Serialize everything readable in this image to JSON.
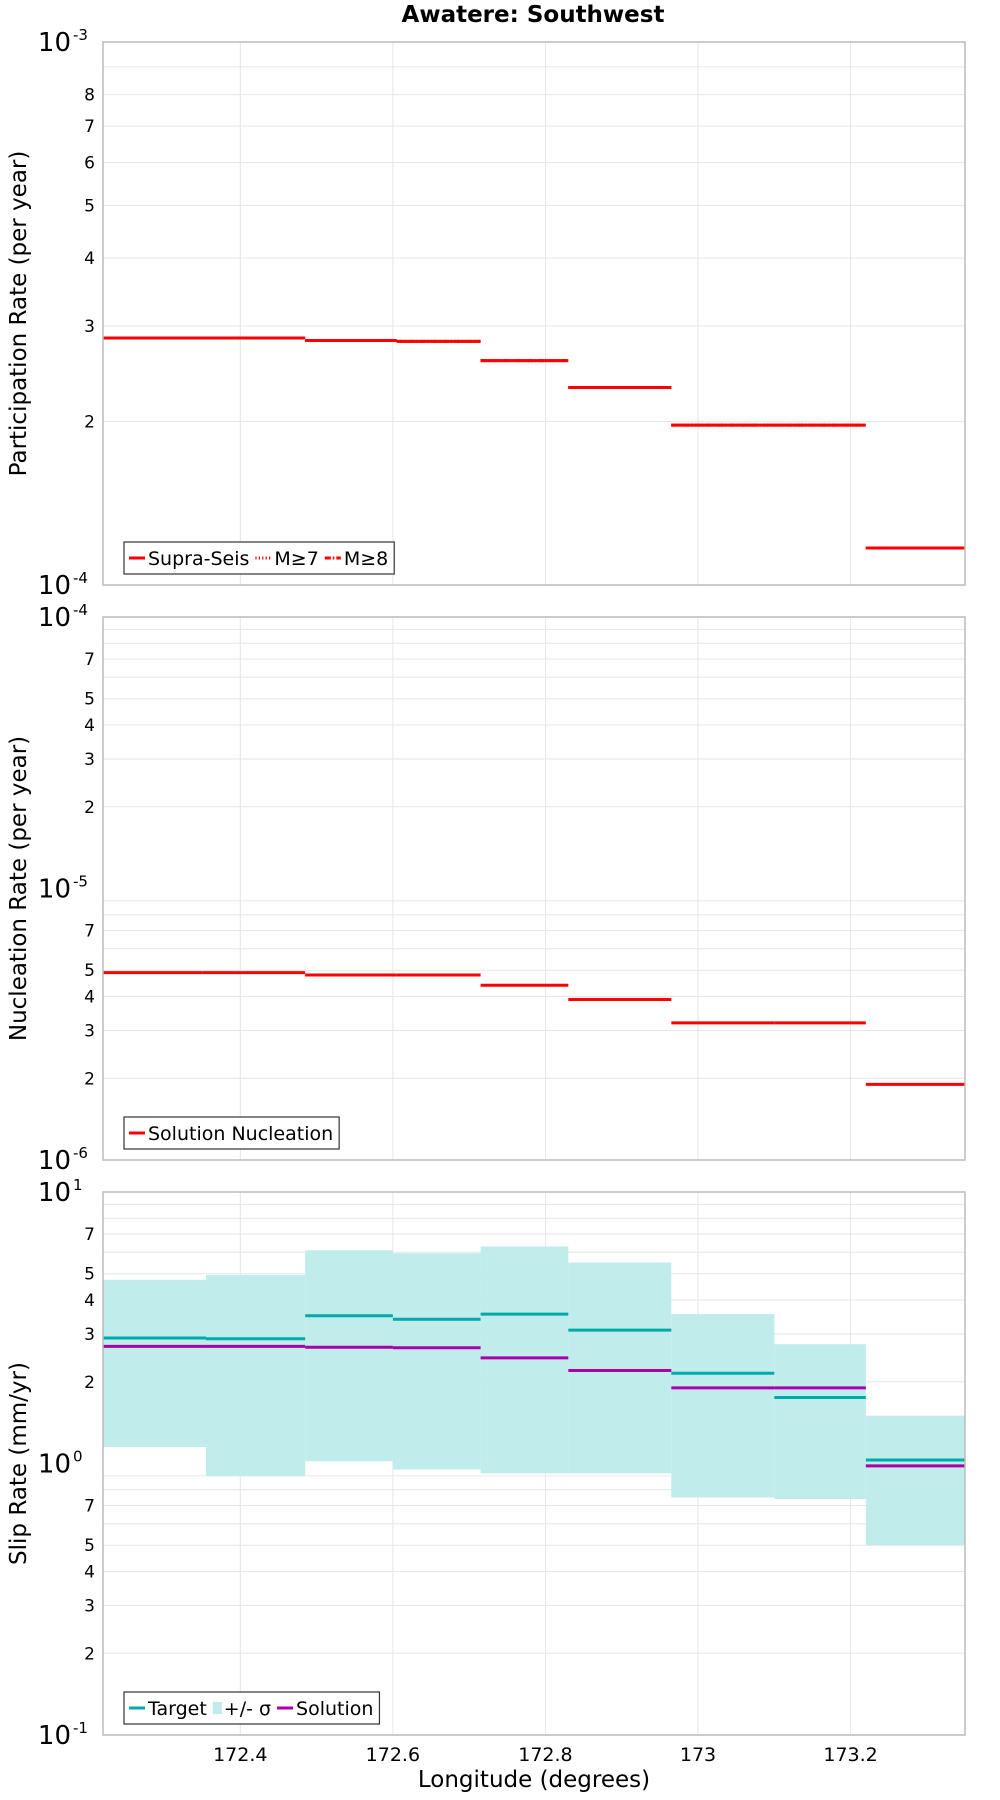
{
  "title": "Awatere: Southwest",
  "xlabel": "Longitude (degrees)",
  "colors": {
    "red": "#ff0000",
    "target": "#00aaaa",
    "band": "#c0ecec",
    "solution": "#aa00aa",
    "grid": "#e6e6e6",
    "frame": "#bbbbbb"
  },
  "chart_data": [
    {
      "type": "line",
      "ylabel": "Participation Rate (per year)",
      "yscale": "log",
      "xlim": [
        172.22,
        173.35
      ],
      "ylim": [
        0.0001,
        0.001
      ],
      "x_ticks": [
        "172.4",
        "172.6",
        "172.8",
        "173",
        "173.2"
      ],
      "y_tick_labels": {
        "major": [
          {
            "v": 0.001,
            "b": "10",
            "e": "-3"
          },
          {
            "v": 0.0001,
            "b": "10",
            "e": "-4"
          }
        ],
        "minor": [
          "8",
          "7",
          "6",
          "5",
          "4",
          "3",
          "2"
        ]
      },
      "legend": {
        "position": "bottom-left",
        "entries": [
          "Supra-Seis",
          "M≥7",
          "M≥8"
        ]
      },
      "x_edges": [
        172.22,
        172.35,
        172.485,
        172.605,
        172.715,
        172.83,
        172.965,
        173.1,
        173.22,
        173.35
      ],
      "series": [
        {
          "name": "Supra-Seis",
          "style": "solid",
          "values": [
            0.000285,
            0.000285,
            0.000282,
            0.000281,
            0.000259,
            0.000231,
            0.000197,
            0.000197,
            0.000117
          ]
        },
        {
          "name": "M≥7",
          "style": "dotted",
          "values": [
            0.000285,
            0.000285,
            0.000282,
            0.000281,
            0.000259,
            0.000231,
            0.000197,
            0.000197,
            0.000117
          ]
        },
        {
          "name": "M≥8",
          "style": "dashdot",
          "values": [
            0.000285,
            0.000285,
            0.000282,
            0.000281,
            0.000259,
            0.000231,
            0.000197,
            0.000197,
            0.000117
          ]
        }
      ]
    },
    {
      "type": "line",
      "ylabel": "Nucleation Rate (per year)",
      "yscale": "log",
      "xlim": [
        172.22,
        173.35
      ],
      "ylim": [
        1e-06,
        0.0001
      ],
      "x_ticks": [
        "172.4",
        "172.6",
        "172.8",
        "173",
        "173.2"
      ],
      "y_tick_labels": {
        "major": [
          {
            "v": 0.0001,
            "b": "10",
            "e": "-4"
          },
          {
            "v": 1e-05,
            "b": "10",
            "e": "-5"
          },
          {
            "v": 1e-06,
            "b": "10",
            "e": "-6"
          }
        ],
        "minor_upper": [
          "7",
          "5",
          "4",
          "3",
          "2"
        ],
        "minor_lower": [
          "7",
          "5",
          "4",
          "3",
          "2"
        ]
      },
      "legend": {
        "position": "bottom-left",
        "entries": [
          "Solution Nucleation"
        ]
      },
      "x_edges": [
        172.22,
        172.35,
        172.485,
        172.605,
        172.715,
        172.83,
        172.965,
        173.1,
        173.22,
        173.35
      ],
      "series": [
        {
          "name": "Solution Nucleation",
          "style": "solid",
          "values": [
            4.9e-06,
            4.9e-06,
            4.8e-06,
            4.8e-06,
            4.4e-06,
            3.9e-06,
            3.2e-06,
            3.2e-06,
            1.9e-06
          ]
        }
      ]
    },
    {
      "type": "line",
      "ylabel": "Slip Rate (mm/yr)",
      "yscale": "log",
      "xlim": [
        172.22,
        173.35
      ],
      "ylim": [
        0.1,
        10
      ],
      "x_ticks": [
        "172.4",
        "172.6",
        "172.8",
        "173",
        "173.2"
      ],
      "y_tick_labels": {
        "major": [
          {
            "v": 10,
            "b": "10",
            "e": "1"
          },
          {
            "v": 1,
            "b": "10",
            "e": "0"
          },
          {
            "v": 0.1,
            "b": "10",
            "e": "-1"
          }
        ],
        "minor_upper": [
          "7",
          "5",
          "4",
          "3",
          "2"
        ],
        "minor_lower": [
          "7",
          "5",
          "4",
          "3",
          "2"
        ]
      },
      "legend": {
        "position": "bottom-left",
        "entries": [
          "Target",
          "+/- σ",
          "Solution"
        ]
      },
      "x_edges": [
        172.22,
        172.355,
        172.485,
        172.6,
        172.715,
        172.83,
        172.965,
        173.1,
        173.22,
        173.35
      ],
      "series": [
        {
          "name": "Target",
          "style": "solid",
          "values": [
            2.9,
            2.88,
            3.5,
            3.4,
            3.55,
            3.1,
            2.15,
            1.75,
            1.03
          ]
        },
        {
          "name": "Solution",
          "style": "solid",
          "values": [
            2.7,
            2.7,
            2.68,
            2.67,
            2.45,
            2.2,
            1.9,
            1.9,
            0.98
          ]
        },
        {
          "name": "+/- σ",
          "style": "band",
          "lower": [
            1.15,
            0.9,
            1.02,
            0.95,
            0.92,
            0.92,
            0.75,
            0.74,
            0.5
          ],
          "upper": [
            4.75,
            4.95,
            6.1,
            5.95,
            6.3,
            5.5,
            3.55,
            2.75,
            1.5
          ]
        }
      ]
    }
  ]
}
